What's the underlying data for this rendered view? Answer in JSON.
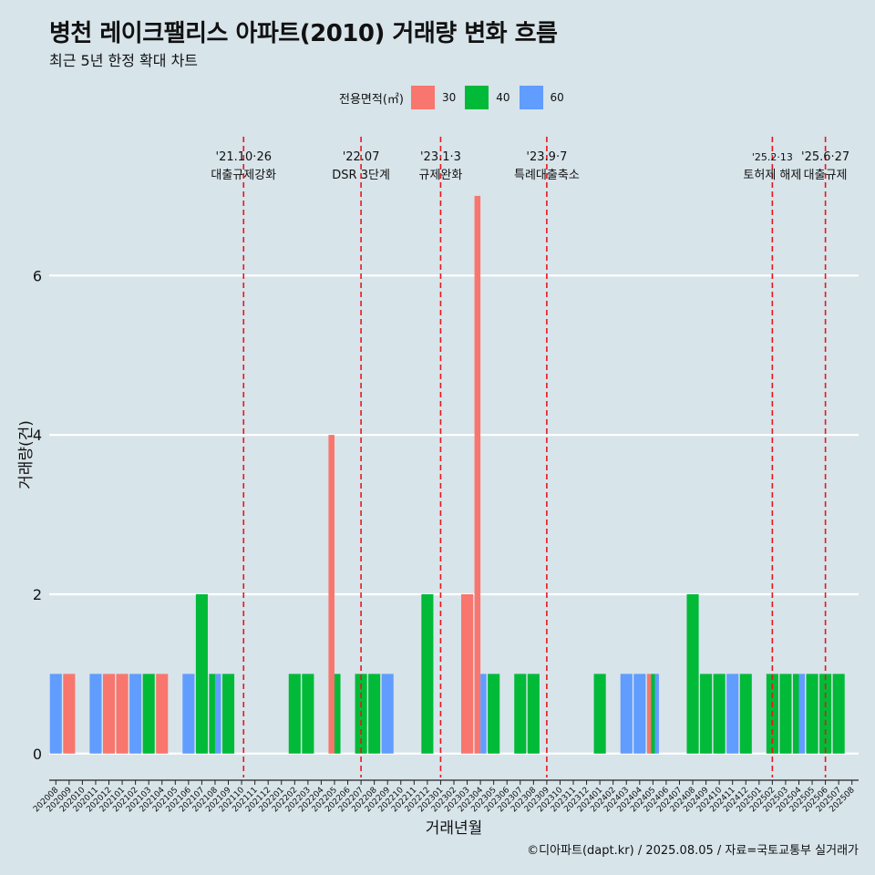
{
  "header": {
    "title": "병천 레이크팰리스 아파트(2010) 거래량 변화 흐름",
    "subtitle": "최근 5년 한정 확대 차트"
  },
  "legend": {
    "title": "전용면적(㎡)",
    "items": [
      {
        "label": "30",
        "color": "#f8766d"
      },
      {
        "label": "40",
        "color": "#00ba38"
      },
      {
        "label": "60",
        "color": "#619cff"
      }
    ]
  },
  "caption": "©디아파트(dapt.kr) / 2025.08.05 / 자료=국토교통부 실거래가",
  "chart_data": {
    "type": "bar",
    "xlabel": "거래년월",
    "ylabel": "거래량(건)",
    "ylim": [
      -0.3,
      7.8
    ],
    "yticks": [
      0,
      2,
      4,
      6
    ],
    "grid": true,
    "legend_position": "top",
    "categories": [
      "202008",
      "202009",
      "202010",
      "202011",
      "202012",
      "202101",
      "202102",
      "202103",
      "202104",
      "202105",
      "202106",
      "202107",
      "202108",
      "202109",
      "202110",
      "202111",
      "202112",
      "202201",
      "202202",
      "202203",
      "202204",
      "202205",
      "202206",
      "202207",
      "202208",
      "202209",
      "202210",
      "202211",
      "202212",
      "202301",
      "202302",
      "202303",
      "202304",
      "202305",
      "202306",
      "202307",
      "202308",
      "202309",
      "202310",
      "202311",
      "202312",
      "202401",
      "202402",
      "202403",
      "202404",
      "202405",
      "202406",
      "202407",
      "202408",
      "202409",
      "202410",
      "202411",
      "202412",
      "202501",
      "202502",
      "202503",
      "202504",
      "202505",
      "202506",
      "202507",
      "202508"
    ],
    "series": [
      {
        "name": "30",
        "color": "#f8766d",
        "values": {
          "202009": 1,
          "202012": 1,
          "202101": 1,
          "202104": 1,
          "202205": 4,
          "202303": 2,
          "202304": 7,
          "202405": 1
        }
      },
      {
        "name": "40",
        "color": "#00ba38",
        "values": {
          "202103": 1,
          "202107": 2,
          "202108": 1,
          "202109": 1,
          "202202": 1,
          "202203": 1,
          "202205": 1,
          "202207": 1,
          "202208": 1,
          "202212": 2,
          "202305": 1,
          "202307": 1,
          "202308": 1,
          "202401": 1,
          "202405": 1,
          "202408": 2,
          "202409": 1,
          "202410": 1,
          "202412": 1,
          "202502": 1,
          "202503": 1,
          "202504": 1,
          "202505": 1,
          "202506": 1,
          "202507": 1
        }
      },
      {
        "name": "60",
        "color": "#619cff",
        "values": {
          "202008": 1,
          "202011": 1,
          "202102": 1,
          "202106": 1,
          "202108": 1,
          "202209": 1,
          "202304": 1,
          "202403": 1,
          "202404": 1,
          "202405": 1,
          "202411": 1,
          "202504": 1
        }
      }
    ],
    "events": [
      {
        "month": "202110",
        "offset": 0.15,
        "date": "'21.10·26",
        "label": "대출규제강화"
      },
      {
        "month": "202207",
        "offset": 0.0,
        "date": "'22.07",
        "label": "DSR 3단계"
      },
      {
        "month": "202301",
        "offset": 0.0,
        "date": "'23.1·3",
        "label": "규제완화"
      },
      {
        "month": "202309",
        "offset": 0.0,
        "date": "'23.9·7",
        "label": "특례대출축소"
      },
      {
        "month": "202502",
        "offset": 0.0,
        "date": "'25.2·13",
        "label": "토허제 해제"
      },
      {
        "month": "202506",
        "offset": 0.0,
        "date": "'25.6·27",
        "label": "대출규제"
      }
    ]
  }
}
